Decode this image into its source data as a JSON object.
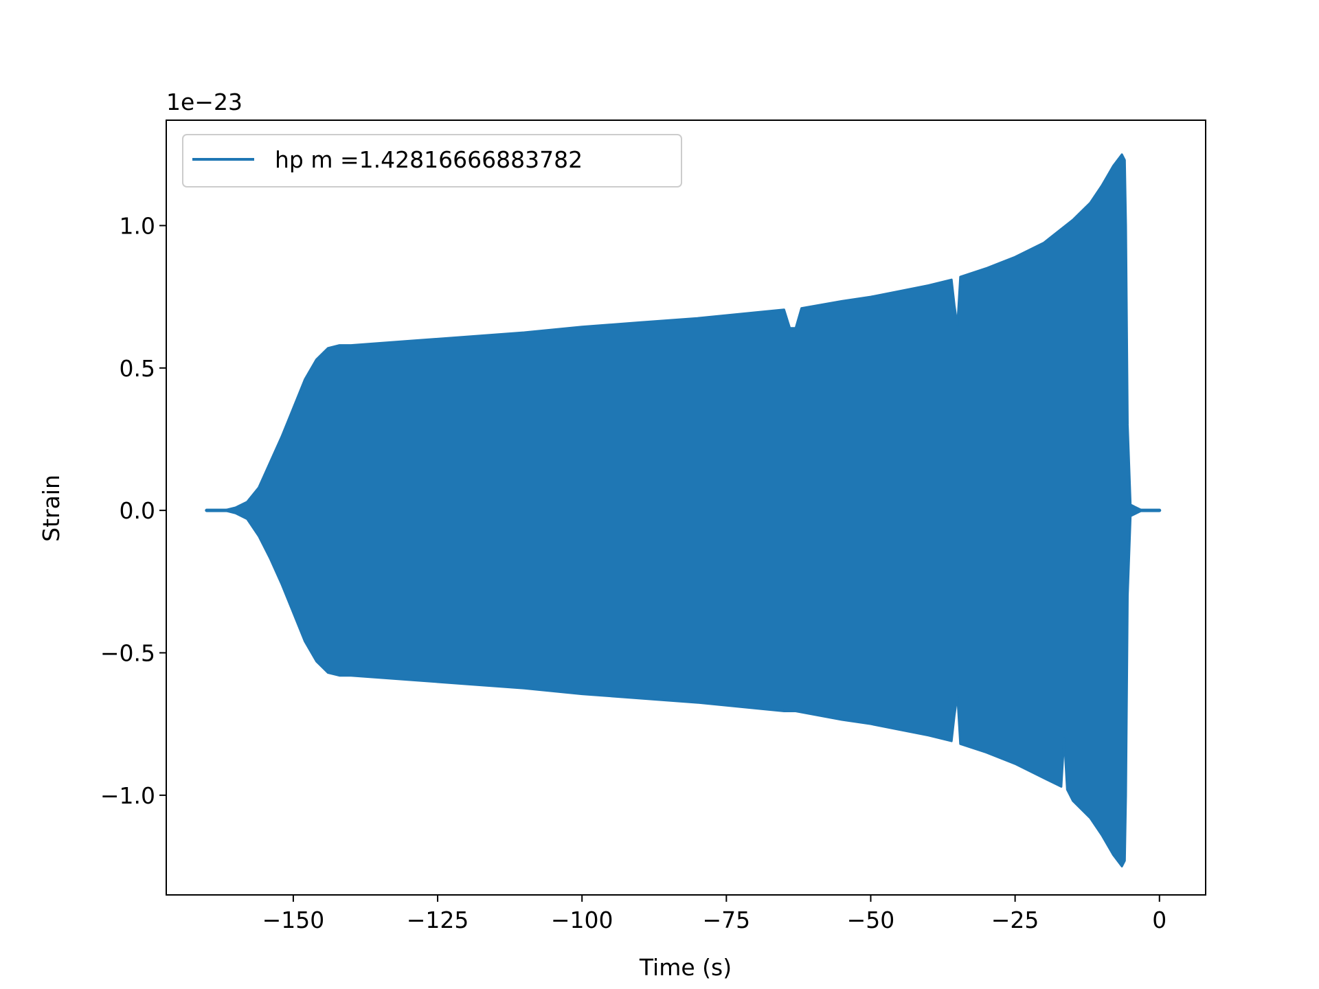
{
  "chart_data": {
    "type": "line",
    "xlabel": "Time (s)",
    "ylabel": "Strain",
    "offset_text": "1e−23",
    "y_scale_exponent": -23,
    "xlim": [
      -172,
      8
    ],
    "ylim": [
      -1.35,
      1.37
    ],
    "x_ticks": [
      -150,
      -125,
      -100,
      -75,
      -50,
      -25,
      0
    ],
    "x_tick_labels": [
      "−150",
      "−125",
      "−100",
      "−75",
      "−50",
      "−25",
      "0"
    ],
    "y_ticks": [
      -1.0,
      -0.5,
      0.0,
      0.5,
      1.0
    ],
    "y_tick_labels": [
      "−1.0",
      "−0.5",
      "0.0",
      "0.5",
      "1.0"
    ],
    "grid": false,
    "legend_position": "upper-left",
    "series": [
      {
        "name": "hp m =1.42816666883782",
        "color": "#1f77b4",
        "description_of_shape": "rapidly oscillating chirp; envelope values below in units of 1e-23",
        "upper_envelope": {
          "x": [
            -165,
            -162,
            -160,
            -158,
            -156,
            -154,
            -152,
            -150,
            -148,
            -146,
            -144,
            -142,
            -140,
            -130,
            -120,
            -110,
            -100,
            -90,
            -80,
            -70,
            -65,
            -64,
            -63,
            -62,
            -55,
            -50,
            -45,
            -40,
            -36,
            -35.5,
            -35,
            -34.5,
            -30,
            -25,
            -20,
            -15,
            -12,
            -10,
            -8,
            -6.5,
            -6,
            -5.8,
            -5.5,
            -5,
            -3,
            -1,
            0
          ],
          "y": [
            0.0,
            0.0,
            0.01,
            0.03,
            0.08,
            0.17,
            0.26,
            0.36,
            0.46,
            0.53,
            0.57,
            0.58,
            0.58,
            0.595,
            0.61,
            0.625,
            0.645,
            0.66,
            0.675,
            0.695,
            0.705,
            0.64,
            0.64,
            0.71,
            0.735,
            0.75,
            0.77,
            0.79,
            0.81,
            0.72,
            0.65,
            0.82,
            0.85,
            0.89,
            0.94,
            1.02,
            1.08,
            1.14,
            1.21,
            1.25,
            1.23,
            1.0,
            0.3,
            0.02,
            0.0,
            0.0,
            0.0
          ]
        },
        "lower_envelope": {
          "x": [
            -165,
            -162,
            -160,
            -158,
            -156,
            -154,
            -152,
            -150,
            -148,
            -146,
            -144,
            -142,
            -140,
            -130,
            -120,
            -110,
            -100,
            -90,
            -80,
            -70,
            -65,
            -63,
            -55,
            -50,
            -45,
            -40,
            -36,
            -35.5,
            -35,
            -34.5,
            -30,
            -25,
            -20,
            -17,
            -16.5,
            -16,
            -15,
            -12,
            -10,
            -8,
            -6.5,
            -6,
            -5.8,
            -5.5,
            -5,
            -3,
            -1,
            0
          ],
          "y": [
            0.0,
            0.0,
            -0.01,
            -0.03,
            -0.09,
            -0.17,
            -0.26,
            -0.36,
            -0.46,
            -0.53,
            -0.57,
            -0.58,
            -0.58,
            -0.595,
            -0.61,
            -0.625,
            -0.645,
            -0.66,
            -0.675,
            -0.695,
            -0.705,
            -0.705,
            -0.735,
            -0.75,
            -0.77,
            -0.79,
            -0.81,
            -0.72,
            -0.65,
            -0.82,
            -0.85,
            -0.89,
            -0.94,
            -0.97,
            -0.8,
            -0.98,
            -1.02,
            -1.08,
            -1.14,
            -1.21,
            -1.25,
            -1.23,
            -1.0,
            -0.3,
            -0.02,
            0.0,
            0.0,
            0.0
          ]
        }
      }
    ]
  }
}
